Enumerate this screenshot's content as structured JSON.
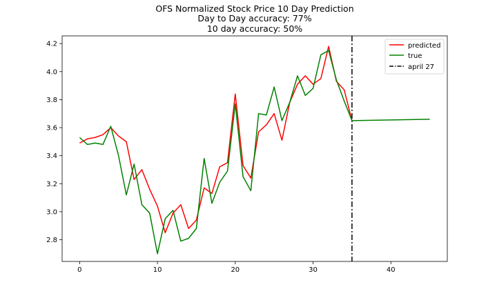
{
  "chart_data": {
    "type": "line",
    "title": "OFS Normalized Stock Price 10 Day Prediction",
    "subtitle_lines": [
      "Day to Day accuracy: 77%",
      "10 day accuracy: 50%"
    ],
    "xlabel": "",
    "ylabel": "",
    "xlim": [
      -2.25,
      47.25
    ],
    "ylim": [
      2.645,
      4.255
    ],
    "xticks": [
      0,
      10,
      20,
      30,
      40
    ],
    "yticks": [
      2.8,
      3.0,
      3.2,
      3.4,
      3.6,
      3.8,
      4.0,
      4.2
    ],
    "ytick_labels": [
      "2.8",
      "3.0",
      "3.2",
      "3.4",
      "3.6",
      "3.8",
      "4.0",
      "4.2"
    ],
    "grid": false,
    "legend_position": "top-right",
    "series": [
      {
        "name": "predicted",
        "color": "#ff0000",
        "x": [
          0,
          1,
          2,
          3,
          4,
          5,
          6,
          7,
          8,
          9,
          10,
          11,
          12,
          13,
          14,
          15,
          16,
          17,
          18,
          19,
          20,
          21,
          22,
          23,
          24,
          25,
          26,
          27,
          28,
          29,
          30,
          31,
          32,
          33,
          34,
          35
        ],
        "y": [
          3.49,
          3.52,
          3.53,
          3.55,
          3.6,
          3.54,
          3.5,
          3.23,
          3.3,
          3.16,
          3.04,
          2.85,
          2.99,
          3.05,
          2.88,
          2.94,
          3.17,
          3.13,
          3.32,
          3.35,
          3.84,
          3.33,
          3.24,
          3.57,
          3.62,
          3.7,
          3.51,
          3.78,
          3.91,
          3.97,
          3.91,
          3.95,
          4.18,
          3.93,
          3.87,
          3.65
        ]
      },
      {
        "name": "true",
        "color": "#008000",
        "x": [
          0,
          1,
          2,
          3,
          4,
          5,
          6,
          7,
          8,
          9,
          10,
          11,
          12,
          13,
          14,
          15,
          16,
          17,
          18,
          19,
          20,
          21,
          22,
          23,
          24,
          25,
          26,
          27,
          28,
          29,
          30,
          31,
          32,
          33,
          34,
          35,
          45
        ],
        "y": [
          3.53,
          3.48,
          3.49,
          3.48,
          3.61,
          3.4,
          3.12,
          3.34,
          3.05,
          2.99,
          2.7,
          2.95,
          3.01,
          2.79,
          2.81,
          2.88,
          3.38,
          3.06,
          3.21,
          3.29,
          3.77,
          3.25,
          3.15,
          3.7,
          3.69,
          3.89,
          3.65,
          3.78,
          3.97,
          3.83,
          3.88,
          4.12,
          4.15,
          3.94,
          3.79,
          3.65,
          3.66
        ]
      }
    ],
    "vlines": [
      {
        "name": "april 27",
        "x": 35,
        "color": "#000000",
        "style": "dashdot"
      }
    ]
  }
}
